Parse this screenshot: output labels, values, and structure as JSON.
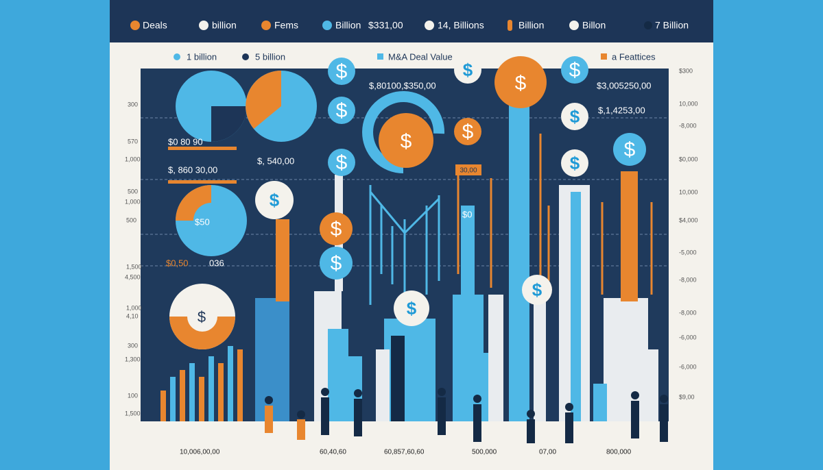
{
  "header": {
    "legend": [
      "Deals",
      "billion",
      "Fems",
      "Billion",
      "$331,00",
      "14, Billions",
      "Billion",
      "Billon",
      "7 Billion"
    ]
  },
  "subheader": {
    "legend": [
      "1 billion",
      "5 billion",
      "M&A Deal Value",
      "a Feattices"
    ]
  },
  "dollar_icon": "$",
  "annotations": [
    "$,80100,$350,00",
    "$3,005250,00",
    "$,1,4253,00",
    "$, 540,00",
    "$0   80   90",
    "$, 860  30,00",
    "$50",
    "30,00",
    "$0",
    "$0,50",
    "036"
  ],
  "left_axis": [
    "300",
    "570",
    "1,000",
    "500",
    "1,000",
    "500",
    "1,500",
    "4,500",
    "1,000",
    "4,10",
    "300",
    "1,300",
    "100",
    "1,500"
  ],
  "right_axis": [
    "$300",
    "10,000",
    "-8,000",
    "$0,000",
    "10,000",
    "$4,000",
    "-5,000",
    "-8,000",
    "-8,000",
    "-6,000",
    "-6,000",
    "$9,00"
  ],
  "bottom_labels": [
    "10,006,00,00",
    "60,40,60",
    "60,857,60,60",
    "500,000",
    "07,00",
    "800,000"
  ]
}
